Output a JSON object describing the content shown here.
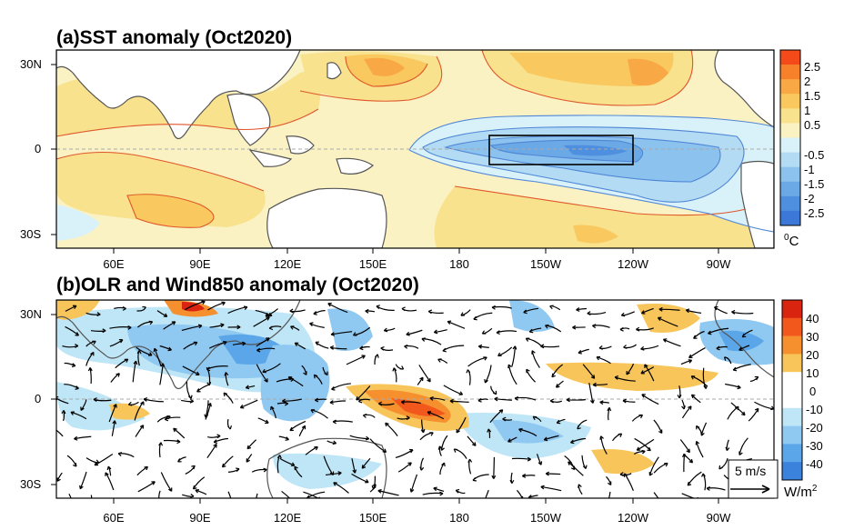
{
  "panel_a": {
    "title": "(a)SST anomaly (Oct2020)",
    "lat_labels": [
      "30N",
      "0",
      "30S"
    ],
    "lon_labels": [
      "60E",
      "90E",
      "120E",
      "150E",
      "180",
      "150W",
      "120W",
      "90W"
    ],
    "colorbar_labels": [
      "2.5",
      "2",
      "1.5",
      "1",
      "0.5",
      "-0.5",
      "-1",
      "-1.5",
      "-2",
      "-2.5"
    ],
    "colorbar_colors": [
      "#f44a1a",
      "#f7802a",
      "#f8a845",
      "#f9c95f",
      "#f8e28e",
      "#fbf2c4",
      "#d9f1f8",
      "#b3dbf3",
      "#8cc3ee",
      "#6ba8e6",
      "#4f8fe0",
      "#3b78d8"
    ],
    "unit": "0C",
    "unit_base": "C",
    "unit_sup": "0"
  },
  "panel_b": {
    "title": "(b)OLR and Wind850 anomaly (Oct2020)",
    "lat_labels": [
      "30N",
      "0",
      "30S"
    ],
    "lon_labels": [
      "60E",
      "90E",
      "120E",
      "150E",
      "180",
      "150W",
      "120W",
      "90W"
    ],
    "colorbar_labels": [
      "40",
      "30",
      "20",
      "10",
      "0",
      "-10",
      "-20",
      "-30",
      "-40"
    ],
    "colorbar_colors": [
      "#d92510",
      "#f2581b",
      "#f6902f",
      "#f8c55a",
      "#ffffff",
      "#ffffff",
      "#bfe6f6",
      "#8fc8f0",
      "#5aa6e8",
      "#3a82dc"
    ],
    "unit_base": "W/m",
    "unit_sup": "2",
    "reference_vector": "5 m/s"
  }
}
